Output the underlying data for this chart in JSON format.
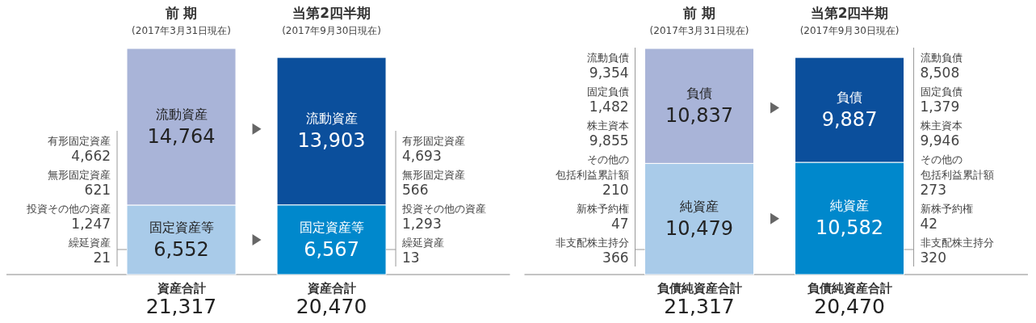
{
  "chart_data": [
    {
      "type": "bar",
      "stacked": true,
      "categories": [
        "前 期\n(2017年3月31日現在)",
        "当第2四半期\n(2017年9月30日現在)"
      ],
      "series": [
        {
          "name": "固定資産等",
          "colors": [
            "#a9cbe9",
            "#0088cc"
          ],
          "values": [
            6552,
            6567
          ],
          "value_labels": [
            "6,552",
            "6,567"
          ]
        },
        {
          "name": "流動資産",
          "colors": [
            "#a9b4d8",
            "#0b4f9c"
          ],
          "values": [
            14764,
            13903
          ],
          "value_labels": [
            "14,764",
            "13,903"
          ]
        }
      ],
      "totals": [
        "21,317",
        "20,470"
      ],
      "annotations": [
        "有形固定資産\n4,662",
        "無形固定資産\n621",
        "投資その他の資産\n1,247",
        "繰延資産\n21",
        "有形固定資産\n4,693",
        "無形固定資産\n566",
        "投資その他の資産\n1,293",
        "繰延資産\n13",
        "資産合計",
        "資産合計"
      ]
    },
    {
      "type": "bar",
      "stacked": true,
      "categories": [
        "前 期\n(2017年3月31日現在)",
        "当第2四半期\n(2017年9月30日現在)"
      ],
      "series": [
        {
          "name": "純資産",
          "colors": [
            "#a9cbe9",
            "#0088cc"
          ],
          "values": [
            10479,
            10582
          ],
          "value_labels": [
            "10,479",
            "10,582"
          ]
        },
        {
          "name": "負債",
          "colors": [
            "#a9b4d8",
            "#0b4f9c"
          ],
          "values": [
            10837,
            9887
          ],
          "value_labels": [
            "10,837",
            "9,887"
          ]
        }
      ],
      "totals": [
        "21,317",
        "20,470"
      ],
      "annotations": [
        "流動負債\n9,354",
        "固定負債\n1,482",
        "株主資本\n9,855",
        "その他の包括利益累計額\n210",
        "新株予約権\n47",
        "非支配株主持分\n366",
        "流動負債\n8,508",
        "固定負債\n1,379",
        "株主資本\n9,946",
        "その他の包括利益累計額\n273",
        "新株予約権\n42",
        "非支配株主持分\n320",
        "負債純資産合計",
        "負債純資産合計"
      ]
    }
  ]
}
